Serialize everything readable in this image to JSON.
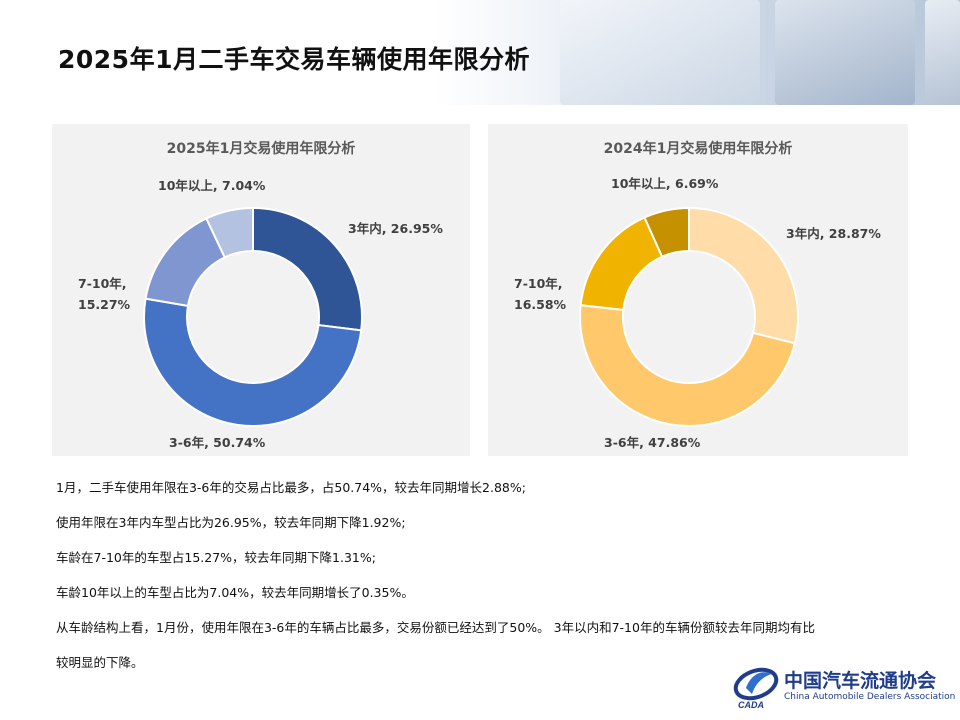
{
  "page": {
    "title": "2025年1月二手车交易车辆使用年限分析"
  },
  "chart_data": [
    {
      "type": "pie",
      "title": "2025年1月交易使用年限分析",
      "slices": [
        {
          "name": "3年内",
          "value": 26.95,
          "label_line1": "3年内, 26.95%",
          "label_line2": "",
          "color": "#2f5597"
        },
        {
          "name": "3-6年",
          "value": 50.74,
          "label_line1": "3-6年, 50.74%",
          "label_line2": "",
          "color": "#4472c4"
        },
        {
          "name": "7-10年",
          "value": 15.27,
          "label_line1": "7-10年,",
          "label_line2": "15.27%",
          "color": "#7f96d0"
        },
        {
          "name": "10年以上",
          "value": 7.04,
          "label_line1": "10年以上, 7.04%",
          "label_line2": "",
          "color": "#b4c2e2"
        }
      ]
    },
    {
      "type": "pie",
      "title": "2024年1月交易使用年限分析",
      "slices": [
        {
          "name": "3年内",
          "value": 28.87,
          "label_line1": "3年内, 28.87%",
          "label_line2": "",
          "color": "#ffdca8"
        },
        {
          "name": "3-6年",
          "value": 47.86,
          "label_line1": "3-6年, 47.86%",
          "label_line2": "",
          "color": "#ffc96b"
        },
        {
          "name": "7-10年",
          "value": 16.58,
          "label_line1": "7-10年,",
          "label_line2": "16.58%",
          "color": "#f0b400"
        },
        {
          "name": "10年以上",
          "value": 6.69,
          "label_line1": "10年以上, 6.69%",
          "label_line2": "",
          "color": "#c69100"
        }
      ]
    }
  ],
  "notes": [
    "1月，二手车使用年限在3-6年的交易占比最多，占50.74%，较去年同期增长2.88%;",
    "使用年限在3年内车型占比为26.95%，较去年同期下降1.92%;",
    "车龄在7-10年的车型占15.27%，较去年同期下降1.31%;",
    "车龄10年以上的车型占比为7.04%，较去年同期增长了0.35%。",
    "从车龄结构上看，1月份，使用年限在3-6年的车辆占比最多，交易份额已经达到了50%。 3年以内和7-10年的车辆份额较去年同期均有比",
    "较明显的下降。"
  ],
  "logo": {
    "cn": "中国汽车流通协会",
    "en": "China Automobile Dealers Association",
    "mark_text": "CADA"
  }
}
